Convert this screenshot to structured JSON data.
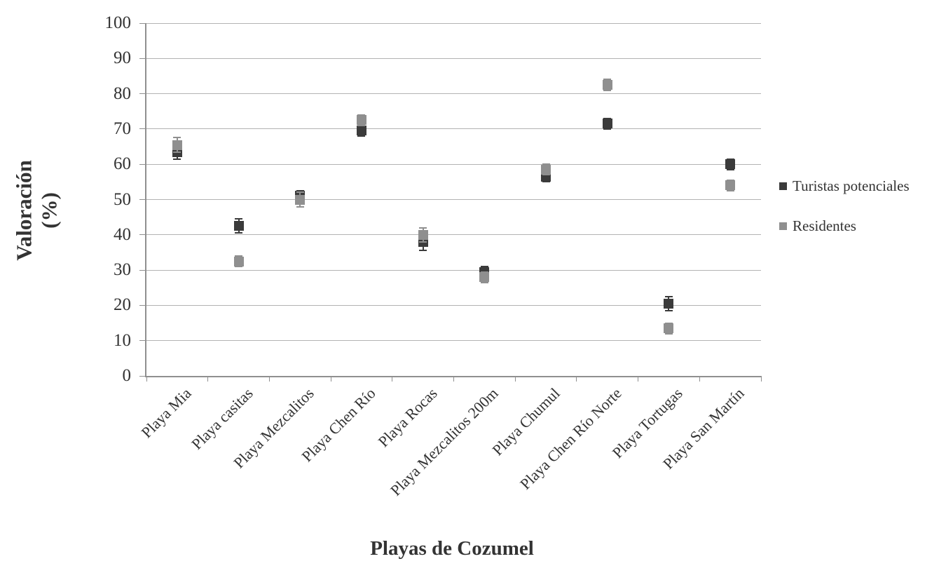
{
  "chart_data": {
    "type": "scatter",
    "title": "",
    "xlabel": "Playas de Cozumel",
    "ylabel_lines": [
      "Valoración",
      "(%)"
    ],
    "ylim": [
      0,
      100
    ],
    "yticks": [
      0,
      10,
      20,
      30,
      40,
      50,
      60,
      70,
      80,
      90,
      100
    ],
    "grid": true,
    "legend_position": "right",
    "categories": [
      "Playa Mia",
      "Playa casitas",
      "Playa Mezcalitos",
      "Playa Chen Río",
      "Playa Rocas",
      "Playa Mezcalitos 200m",
      "Playa Chumul",
      "Playa Chen Río Norte",
      "Playa Tortugas",
      "Playa San Martín"
    ],
    "series": [
      {
        "name": "Turistas potenciales",
        "marker": "square",
        "color": "#3b3b3b",
        "values": [
          63.5,
          42.5,
          51,
          69.5,
          38,
          29.5,
          56.5,
          71.5,
          20.5,
          60
        ],
        "errors": [
          2,
          2,
          1.5,
          1.5,
          2.5,
          1.5,
          1.5,
          1.5,
          2,
          1.5
        ]
      },
      {
        "name": "Residentes",
        "marker": "square",
        "color": "#8f8f8f",
        "values": [
          65.5,
          32.5,
          50,
          72.5,
          40,
          28,
          58.5,
          82.5,
          13.5,
          54
        ],
        "errors": [
          2,
          1.5,
          2,
          1.5,
          2,
          1.5,
          1.5,
          1.5,
          1.5,
          1.5
        ]
      }
    ]
  },
  "styles": {
    "background": "#ffffff",
    "gridline_color": "#b3b3b3",
    "axis_color": "#8f8f8f",
    "text_color": "#333333"
  }
}
